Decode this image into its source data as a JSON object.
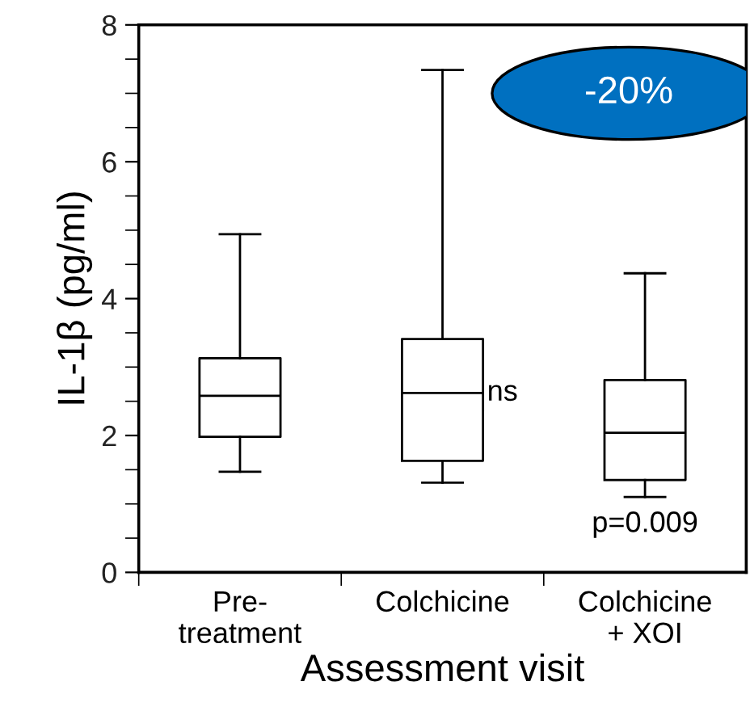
{
  "chart_data": {
    "type": "box",
    "xlabel": "Assessment visit",
    "ylabel": "IL-1β (pg/ml)",
    "categories": [
      "Pre-\ntreatment",
      "Colchicine",
      "Colchicine\n+ XOI"
    ],
    "boxes": [
      {
        "low": 1.47,
        "q1": 1.98,
        "median": 2.58,
        "q3": 3.13,
        "high": 4.94
      },
      {
        "low": 1.31,
        "q1": 1.63,
        "median": 2.62,
        "q3": 3.41,
        "high": 7.34
      },
      {
        "low": 1.1,
        "q1": 1.35,
        "median": 2.04,
        "q3": 2.81,
        "high": 4.37
      }
    ],
    "ylim": [
      0,
      8
    ],
    "yticks": [
      0,
      2,
      4,
      6,
      8
    ],
    "grid": false,
    "legend": false,
    "annotations": [
      "-20%",
      "ns",
      "p=0.009"
    ]
  }
}
